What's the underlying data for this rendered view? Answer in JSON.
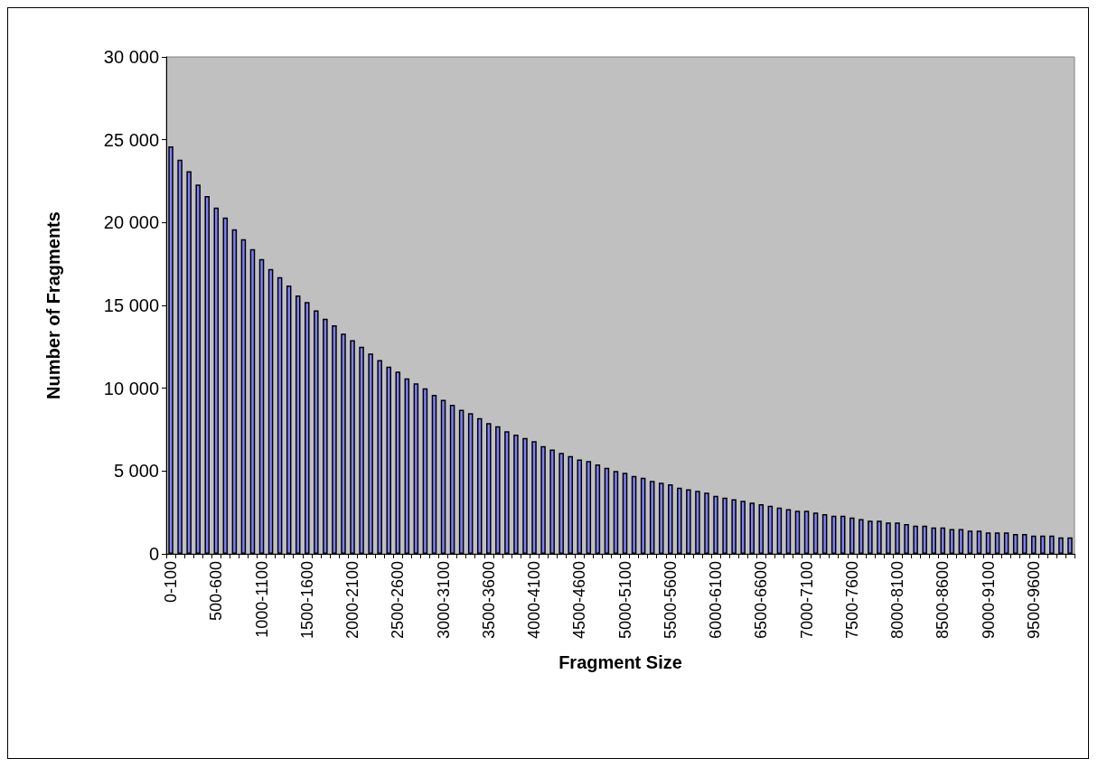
{
  "chart_data": {
    "type": "bar",
    "xlabel": "Fragment Size",
    "ylabel": "Number of Fragments",
    "categories": [
      "0-100",
      null,
      null,
      null,
      null,
      "500-600",
      null,
      null,
      null,
      null,
      "1000-1100",
      null,
      null,
      null,
      null,
      "1500-1600",
      null,
      null,
      null,
      null,
      "2000-2100",
      null,
      null,
      null,
      null,
      "2500-2600",
      null,
      null,
      null,
      null,
      "3000-3100",
      null,
      null,
      null,
      null,
      "3500-3600",
      null,
      null,
      null,
      null,
      "4000-4100",
      null,
      null,
      null,
      null,
      "4500-4600",
      null,
      null,
      null,
      null,
      "5000-5100",
      null,
      null,
      null,
      null,
      "5500-5600",
      null,
      null,
      null,
      null,
      "6000-6100",
      null,
      null,
      null,
      null,
      "6500-6600",
      null,
      null,
      null,
      null,
      "7000-7100",
      null,
      null,
      null,
      null,
      "7500-7600",
      null,
      null,
      null,
      null,
      "8000-8100",
      null,
      null,
      null,
      null,
      "8500-8600",
      null,
      null,
      null,
      null,
      "9000-9100",
      null,
      null,
      null,
      null,
      "9500-9600",
      null,
      null,
      null,
      null
    ],
    "values": [
      24600,
      23800,
      23100,
      22300,
      21600,
      20900,
      20300,
      19600,
      19000,
      18400,
      17800,
      17200,
      16700,
      16200,
      15600,
      15200,
      14700,
      14200,
      13800,
      13300,
      12900,
      12500,
      12100,
      11700,
      11300,
      11000,
      10600,
      10300,
      10000,
      9600,
      9300,
      9000,
      8700,
      8500,
      8200,
      7900,
      7700,
      7400,
      7200,
      7000,
      6800,
      6500,
      6300,
      6100,
      5900,
      5700,
      5600,
      5400,
      5200,
      5000,
      4900,
      4700,
      4600,
      4400,
      4300,
      4200,
      4000,
      3900,
      3800,
      3700,
      3500,
      3400,
      3300,
      3200,
      3100,
      3000,
      2900,
      2800,
      2700,
      2600,
      2600,
      2500,
      2400,
      2300,
      2300,
      2200,
      2100,
      2000,
      2000,
      1900,
      1900,
      1800,
      1700,
      1700,
      1600,
      1600,
      1500,
      1500,
      1400,
      1400,
      1300,
      1300,
      1300,
      1200,
      1200,
      1100,
      1100,
      1100,
      1000,
      1000
    ],
    "color": "#8080ff",
    "ylim": [
      0,
      30000
    ],
    "yticks": [
      0,
      {
        "value": 5000,
        "label": "5 000"
      },
      {
        "value": 10000,
        "label": "10 000"
      },
      {
        "value": 15000,
        "label": "15 000"
      },
      {
        "value": 20000,
        "label": "20 000"
      },
      {
        "value": 25000,
        "label": "25 000"
      },
      {
        "value": 30000,
        "label": "30 000"
      }
    ],
    "grid": false
  }
}
